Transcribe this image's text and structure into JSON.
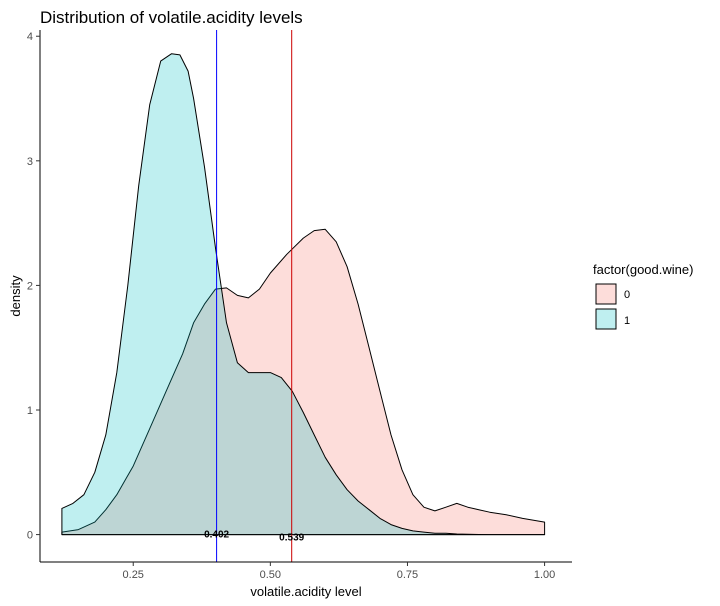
{
  "chart_data": {
    "type": "area",
    "title": "Distribution of volatile.acidity levels",
    "xlabel": "volatile.acidity level",
    "ylabel": "density",
    "xlim": [
      0.08,
      1.05
    ],
    "ylim": [
      -0.22,
      4.05
    ],
    "x_ticks": [
      0.25,
      0.5,
      0.75,
      1.0
    ],
    "x_tick_labels": [
      "0.25",
      "0.50",
      "0.75",
      "1.00"
    ],
    "y_ticks": [
      0,
      1,
      2,
      3,
      4
    ],
    "y_tick_labels": [
      "0",
      "1",
      "2",
      "3",
      "4"
    ],
    "grid": false,
    "legend": {
      "title": "factor(good.wine)",
      "position": "right",
      "entries": [
        {
          "label": "0",
          "color": "#F8766D"
        },
        {
          "label": "1",
          "color": "#00BFC4"
        }
      ]
    },
    "series": [
      {
        "name": "0",
        "color": "#F8766D",
        "x": [
          0.12,
          0.15,
          0.18,
          0.2,
          0.22,
          0.25,
          0.28,
          0.31,
          0.34,
          0.36,
          0.38,
          0.4,
          0.42,
          0.44,
          0.46,
          0.48,
          0.5,
          0.53,
          0.56,
          0.58,
          0.6,
          0.62,
          0.64,
          0.66,
          0.68,
          0.7,
          0.72,
          0.74,
          0.76,
          0.78,
          0.8,
          0.82,
          0.84,
          0.86,
          0.88,
          0.9,
          0.93,
          0.96,
          1.0
        ],
        "y": [
          0.02,
          0.04,
          0.1,
          0.2,
          0.32,
          0.55,
          0.85,
          1.15,
          1.45,
          1.7,
          1.85,
          1.97,
          1.98,
          1.92,
          1.9,
          1.97,
          2.1,
          2.25,
          2.38,
          2.44,
          2.45,
          2.35,
          2.15,
          1.85,
          1.5,
          1.15,
          0.8,
          0.52,
          0.32,
          0.22,
          0.19,
          0.22,
          0.25,
          0.22,
          0.2,
          0.18,
          0.16,
          0.13,
          0.1
        ]
      },
      {
        "name": "1",
        "color": "#00BFC4",
        "x": [
          0.12,
          0.14,
          0.16,
          0.18,
          0.2,
          0.22,
          0.24,
          0.26,
          0.28,
          0.3,
          0.32,
          0.335,
          0.35,
          0.36,
          0.38,
          0.4,
          0.42,
          0.44,
          0.46,
          0.48,
          0.5,
          0.52,
          0.54,
          0.56,
          0.58,
          0.6,
          0.62,
          0.64,
          0.66,
          0.68,
          0.7,
          0.72,
          0.74,
          0.76,
          0.78,
          0.8,
          0.82,
          0.84,
          0.86,
          0.88,
          0.9,
          0.93,
          0.96,
          1.0
        ],
        "y": [
          0.21,
          0.25,
          0.32,
          0.5,
          0.8,
          1.3,
          2.0,
          2.8,
          3.45,
          3.8,
          3.86,
          3.85,
          3.72,
          3.5,
          2.95,
          2.3,
          1.7,
          1.38,
          1.3,
          1.3,
          1.3,
          1.26,
          1.15,
          0.98,
          0.8,
          0.62,
          0.48,
          0.36,
          0.27,
          0.2,
          0.13,
          0.08,
          0.05,
          0.03,
          0.02,
          0.01,
          0.01,
          0.005,
          0.002,
          0.001,
          0.0,
          0.0,
          0.0,
          0.0
        ]
      }
    ],
    "vlines": [
      {
        "x": 0.402,
        "color": "#0000FF",
        "label": "0.402"
      },
      {
        "x": 0.539,
        "color": "#CC0000",
        "label": "0.539"
      }
    ]
  }
}
